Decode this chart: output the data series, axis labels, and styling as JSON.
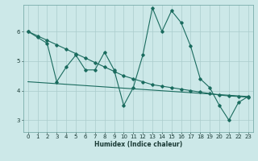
{
  "xlabel": "Humidex (Indice chaleur)",
  "bg_color": "#cce8e8",
  "grid_color": "#aacccc",
  "line_color": "#1a6b5e",
  "xlim": [
    -0.5,
    23.5
  ],
  "ylim": [
    2.6,
    6.9
  ],
  "xticks": [
    0,
    1,
    2,
    3,
    4,
    5,
    6,
    7,
    8,
    9,
    10,
    11,
    12,
    13,
    14,
    15,
    16,
    17,
    18,
    19,
    20,
    21,
    22,
    23
  ],
  "yticks": [
    3,
    4,
    5,
    6
  ],
  "line1_x": [
    0,
    1,
    2,
    3,
    4,
    5,
    6,
    7,
    8,
    9,
    10,
    11,
    12,
    13,
    14,
    15,
    16,
    17,
    18,
    19,
    20,
    21,
    22,
    23
  ],
  "line1_y": [
    6.0,
    5.8,
    5.6,
    4.3,
    4.8,
    5.2,
    4.7,
    4.7,
    5.3,
    4.7,
    3.5,
    4.1,
    5.2,
    6.8,
    6.0,
    6.7,
    6.3,
    5.5,
    4.4,
    4.1,
    3.5,
    3.0,
    3.6,
    3.8
  ],
  "line2_x": [
    0,
    1,
    2,
    3,
    4,
    5,
    6,
    7,
    8,
    9,
    10,
    11,
    12,
    13,
    14,
    15,
    16,
    17,
    18,
    19,
    20,
    21,
    22,
    23
  ],
  "line2_y": [
    6.0,
    5.85,
    5.7,
    5.55,
    5.4,
    5.25,
    5.1,
    4.95,
    4.8,
    4.65,
    4.5,
    4.4,
    4.3,
    4.2,
    4.15,
    4.1,
    4.05,
    4.0,
    3.95,
    3.9,
    3.85,
    3.82,
    3.8,
    3.78
  ],
  "line3_x": [
    0,
    23
  ],
  "line3_y": [
    4.3,
    3.8
  ]
}
